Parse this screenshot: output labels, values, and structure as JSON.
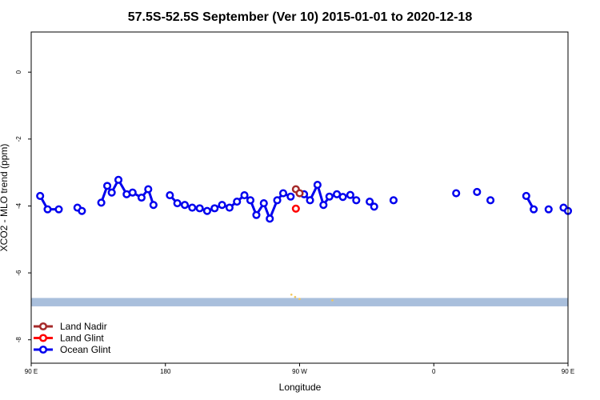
{
  "chart_data": {
    "type": "line",
    "title": "57.5S-52.5S September (Ver 10)   2015-01-01 to 2020-12-18",
    "xlabel": "Longitude",
    "ylabel": "XCO2 - MLO trend (ppm)",
    "xlim": [
      90,
      450
    ],
    "ylim": [
      -8.7,
      1.2
    ],
    "x_ticks": [
      {
        "value": 90,
        "label": "90 E"
      },
      {
        "value": 180,
        "label": "180"
      },
      {
        "value": 270,
        "label": "90 W"
      },
      {
        "value": 360,
        "label": "0"
      },
      {
        "value": 450,
        "label": "90 E"
      },
      {
        "value": 540,
        "label": "180"
      }
    ],
    "y_ticks": [
      {
        "value": 0,
        "label": "0"
      },
      {
        "value": -2,
        "label": "-2"
      },
      {
        "value": -4,
        "label": "-4"
      },
      {
        "value": -6,
        "label": "-6"
      },
      {
        "value": -8,
        "label": "-8"
      }
    ],
    "grid": false,
    "legend_position": "bottom-left",
    "land_band": {
      "y_range": [
        -6.75,
        -7.0
      ],
      "color": "#a9bfdc"
    },
    "series": [
      {
        "name": "Land Nadir",
        "color": "#a52a2a",
        "segments": [
          [
            [
              267.5,
              -3.5
            ],
            [
              270,
              -3.62
            ]
          ]
        ]
      },
      {
        "name": "Land Glint",
        "color": "#ff0000",
        "segments": [
          [
            [
              267.5,
              -4.08
            ]
          ]
        ]
      },
      {
        "name": "Ocean Glint",
        "color": "#0000ee",
        "segments": [
          [
            [
              96,
              -3.7
            ],
            [
              101,
              -4.1
            ],
            [
              108.5,
              -4.1
            ]
          ],
          [
            [
              121,
              -4.05
            ],
            [
              124,
              -4.15
            ]
          ],
          [
            [
              137,
              -3.9
            ],
            [
              141,
              -3.4
            ],
            [
              144,
              -3.6
            ],
            [
              148.5,
              -3.22
            ],
            [
              154,
              -3.65
            ],
            [
              158,
              -3.6
            ],
            [
              164,
              -3.75
            ],
            [
              168.5,
              -3.5
            ],
            [
              172,
              -3.97
            ]
          ],
          [
            [
              183,
              -3.68
            ],
            [
              188,
              -3.92
            ],
            [
              193,
              -3.97
            ],
            [
              198,
              -4.05
            ],
            [
              203,
              -4.07
            ],
            [
              208,
              -4.15
            ],
            [
              213,
              -4.07
            ],
            [
              218,
              -3.97
            ],
            [
              223,
              -4.05
            ],
            [
              228,
              -3.87
            ],
            [
              233,
              -3.68
            ],
            [
              237,
              -3.83
            ],
            [
              241,
              -4.27
            ],
            [
              246,
              -3.92
            ],
            [
              250,
              -4.38
            ],
            [
              255,
              -3.83
            ],
            [
              259,
              -3.62
            ],
            [
              264,
              -3.72
            ]
          ],
          [
            [
              273,
              -3.65
            ],
            [
              277,
              -3.83
            ],
            [
              282,
              -3.37
            ],
            [
              286,
              -3.97
            ],
            [
              290,
              -3.72
            ],
            [
              295,
              -3.65
            ],
            [
              299,
              -3.73
            ],
            [
              304,
              -3.67
            ],
            [
              308,
              -3.83
            ]
          ],
          [
            [
              317,
              -3.87
            ],
            [
              320,
              -4.02
            ]
          ],
          [
            [
              333,
              -3.83
            ]
          ],
          [
            [
              375,
              -3.62
            ]
          ],
          [
            [
              389,
              -3.58
            ]
          ],
          [
            [
              398,
              -3.83
            ]
          ],
          [
            [
              422,
              -3.7
            ],
            [
              427,
              -4.1
            ]
          ],
          [
            [
              437,
              -4.1
            ]
          ],
          [
            [
              447,
              -4.05
            ],
            [
              450,
              -4.15
            ]
          ]
        ]
      }
    ],
    "land_markers": [
      {
        "x": 264.5,
        "y": -6.65
      },
      {
        "x": 267,
        "y": -6.72
      },
      {
        "x": 270,
        "y": -6.78
      },
      {
        "x": 292,
        "y": -6.82
      }
    ],
    "land_marker_color": "#f2c85b"
  }
}
